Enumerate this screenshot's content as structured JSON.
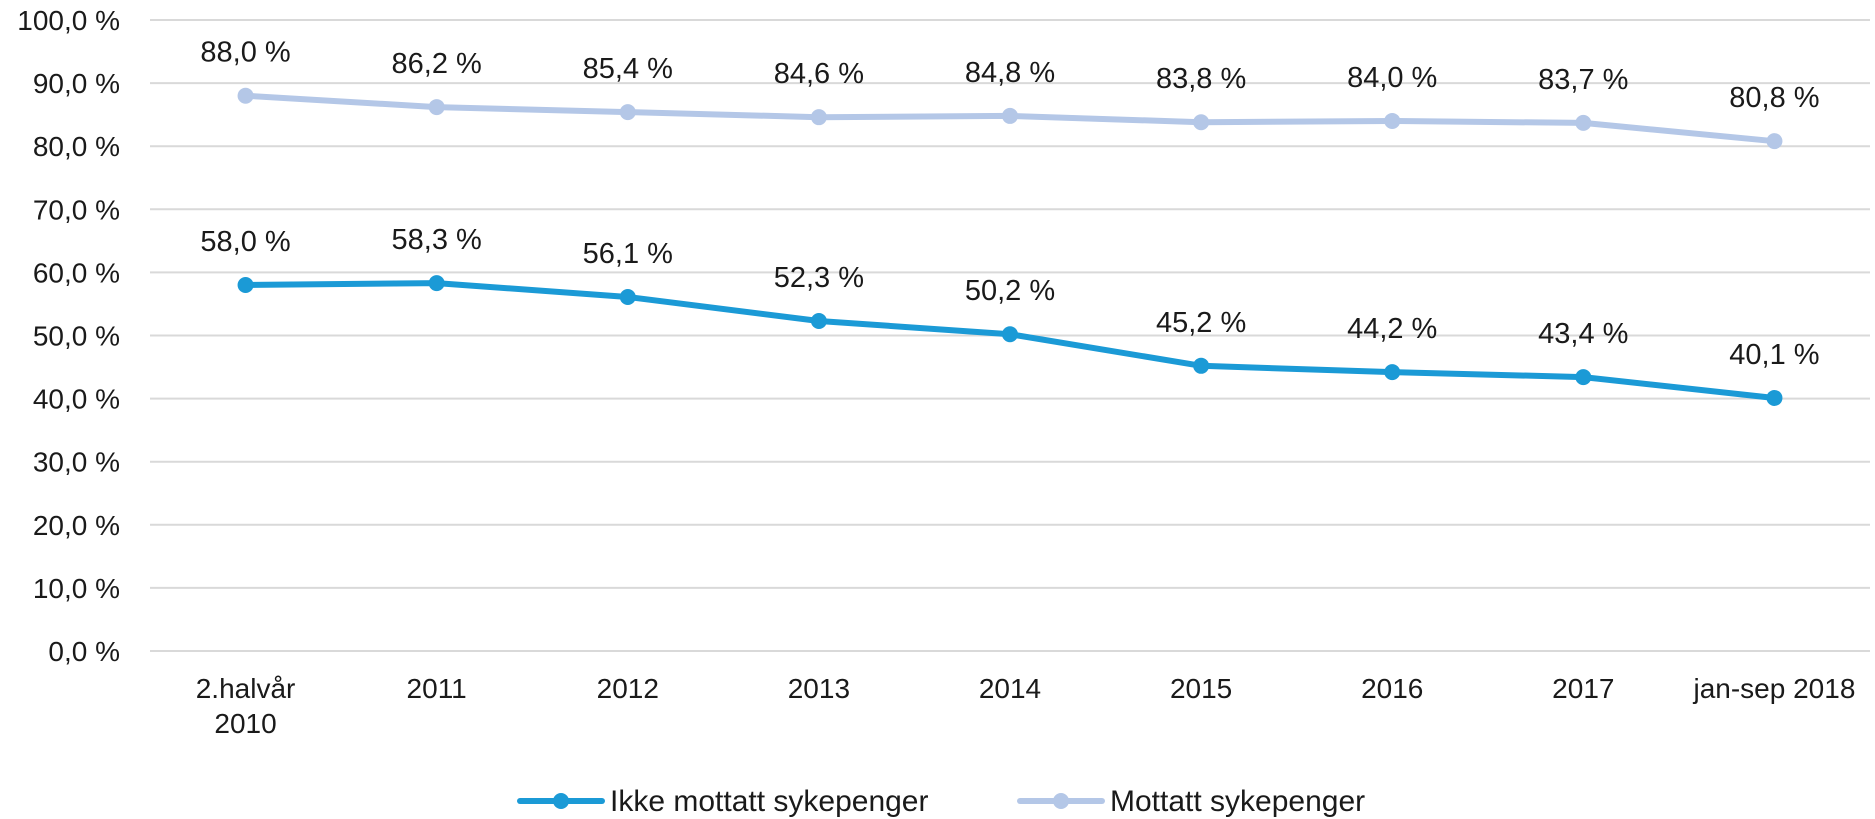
{
  "chart_data": {
    "type": "line",
    "title": "",
    "xlabel": "",
    "ylabel": "",
    "categories": [
      [
        "2.halvår",
        "2010"
      ],
      [
        "2011"
      ],
      [
        "2012"
      ],
      [
        "2013"
      ],
      [
        "2014"
      ],
      [
        "2015"
      ],
      [
        "2016"
      ],
      [
        "2017"
      ],
      [
        "jan-sep 2018"
      ]
    ],
    "y_ticks": [
      "0,0 %",
      "10,0 %",
      "20,0 %",
      "30,0 %",
      "40,0 %",
      "50,0 %",
      "60,0 %",
      "70,0 %",
      "80,0 %",
      "90,0 %",
      "100,0 %"
    ],
    "ylim": [
      0,
      100
    ],
    "grid": true,
    "legend_position": "bottom",
    "series": [
      {
        "name": "Mottatt sykepenger",
        "color": "#b4c7e7",
        "values": [
          88.0,
          86.2,
          85.4,
          84.6,
          84.8,
          83.8,
          84.0,
          83.7,
          80.8
        ],
        "labels": [
          "88,0 %",
          "86,2 %",
          "85,4 %",
          "84,6 %",
          "84,8 %",
          "83,8 %",
          "84,0 %",
          "83,7 %",
          "80,8 %"
        ]
      },
      {
        "name": "Ikke mottatt sykepenger",
        "color": "#1b9ad6",
        "values": [
          58.0,
          58.3,
          56.1,
          52.3,
          50.2,
          45.2,
          44.2,
          43.4,
          40.1
        ],
        "labels": [
          "58,0 %",
          "58,3 %",
          "56,1 %",
          "52,3 %",
          "50,2 %",
          "45,2 %",
          "44,2 %",
          "43,4 %",
          "40,1 %"
        ]
      }
    ],
    "legend_order": [
      "Ikke mottatt sykepenger",
      "Mottatt sykepenger"
    ]
  }
}
